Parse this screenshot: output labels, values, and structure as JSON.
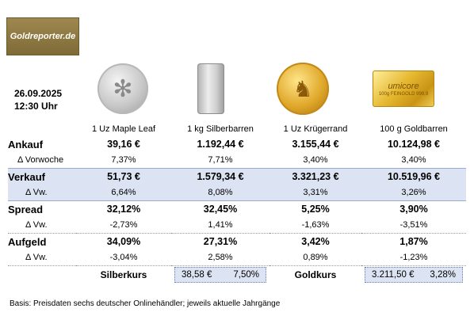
{
  "logo_text": "Goldreporter.de",
  "date": "26.09.2025",
  "time": "12:30 Uhr",
  "products": [
    {
      "name": "1 Uz Maple Leaf",
      "icon": "maple-leaf-coin-icon"
    },
    {
      "name": "1 kg Silberbarren",
      "icon": "silver-bar-icon"
    },
    {
      "name": "1 Uz Krügerrand",
      "icon": "kruegerrand-coin-icon"
    },
    {
      "name": "100 g Goldbarren",
      "icon": "gold-bar-icon",
      "bar_brand": "umicore",
      "bar_text": "100g FEINGOLD 999,9"
    }
  ],
  "rows": {
    "ankauf": {
      "label": "Ankauf",
      "values": [
        "39,16 €",
        "1.192,44 €",
        "3.155,44 €",
        "10.124,98 €"
      ]
    },
    "ankauf_delta": {
      "label": "Δ Vorwoche",
      "values": [
        "7,37%",
        "7,71%",
        "3,40%",
        "3,40%"
      ]
    },
    "verkauf": {
      "label": "Verkauf",
      "values": [
        "51,73 €",
        "1.579,34 €",
        "3.321,23 €",
        "10.519,96 €"
      ]
    },
    "verkauf_delta": {
      "label": "Δ Vw.",
      "values": [
        "6,64%",
        "8,08%",
        "3,31%",
        "3,26%"
      ]
    },
    "spread": {
      "label": "Spread",
      "values": [
        "32,12%",
        "32,45%",
        "5,25%",
        "3,90%"
      ]
    },
    "spread_delta": {
      "label": "Δ Vw.",
      "values": [
        "-2,73%",
        "1,41%",
        "-1,63%",
        "-3,51%"
      ]
    },
    "aufgeld": {
      "label": "Aufgeld",
      "values": [
        "34,09%",
        "27,31%",
        "3,42%",
        "1,87%"
      ]
    },
    "aufgeld_delta": {
      "label": "Δ Vw.",
      "values": [
        "-3,04%",
        "2,58%",
        "0,89%",
        "-1,23%"
      ]
    }
  },
  "kurs": {
    "silver_label": "Silberkurs",
    "silver_price": "38,58 €",
    "silver_change": "7,50%",
    "gold_label": "Goldkurs",
    "gold_price": "3.211,50 €",
    "gold_change": "3,28%"
  },
  "footnote": "Basis: Preisdaten sechs deutscher Onlinehändler; jeweils aktuelle Jahrgänge",
  "colors": {
    "highlight": "#dce3f2",
    "logo_bg": "#8c7840",
    "gold": "#e0a82a",
    "silver": "#c8c8c8"
  }
}
